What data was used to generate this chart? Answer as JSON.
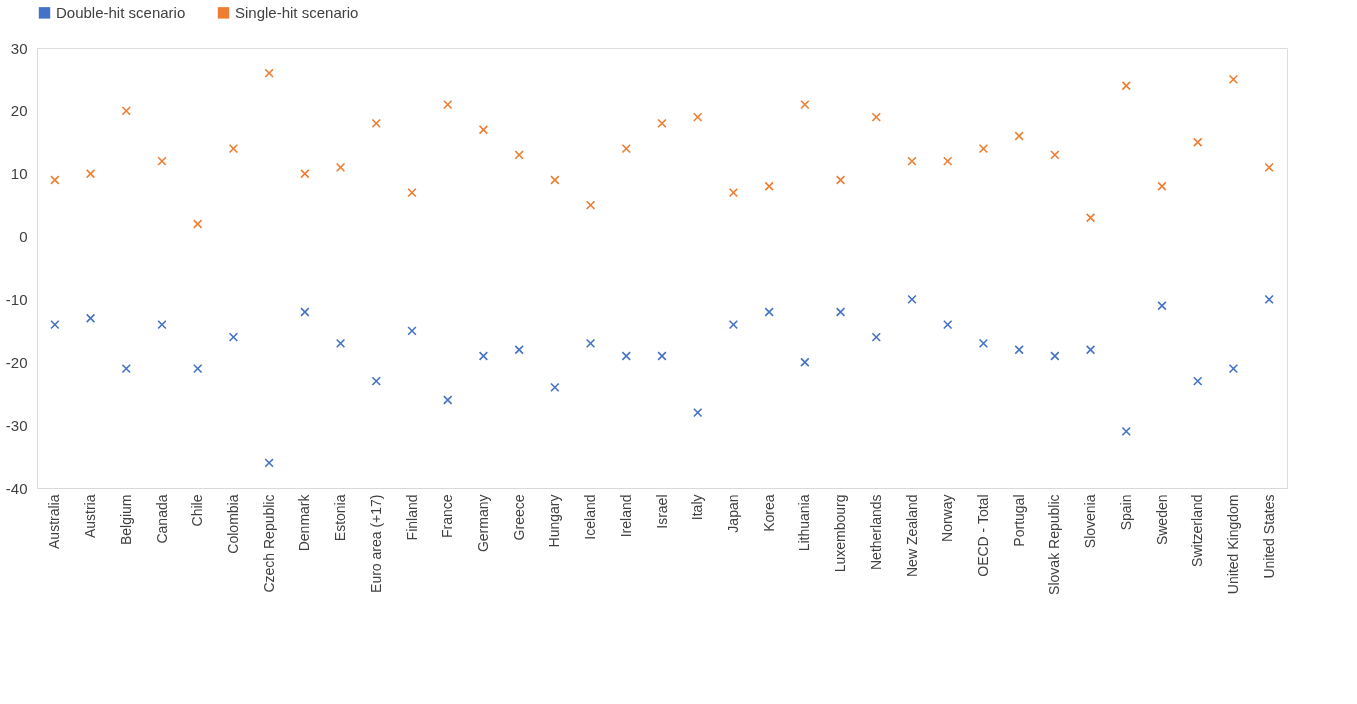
{
  "chart_data": {
    "type": "scatter",
    "categories": [
      "Australia",
      "Austria",
      "Belgium",
      "Canada",
      "Chile",
      "Colombia",
      "Czech Republic",
      "Denmark",
      "Estonia",
      "Euro area (+17)",
      "Finland",
      "France",
      "Germany",
      "Greece",
      "Hungary",
      "Iceland",
      "Ireland",
      "Israel",
      "Italy",
      "Japan",
      "Korea",
      "Lithuania",
      "Luxembourg",
      "Netherlands",
      "New Zealand",
      "Norway",
      "OECD - Total",
      "Portugal",
      "Slovak Republic",
      "Slovenia",
      "Spain",
      "Sweden",
      "Switzerland",
      "United Kingdom",
      "United States"
    ],
    "series": [
      {
        "name": "Double-hit scenario",
        "color": "#4472c4",
        "values": [
          -14,
          -13,
          -21,
          -14,
          -21,
          -16,
          -36,
          -12,
          -17,
          -23,
          -15,
          -26,
          -19,
          -18,
          -24,
          -17,
          -19,
          -19,
          -28,
          -14,
          -12,
          -20,
          -12,
          -16,
          -10,
          -14,
          -17,
          -18,
          -19,
          -18,
          -31,
          -11,
          -23,
          -21,
          -10
        ]
      },
      {
        "name": "Single-hit scenario",
        "color": "#ed7d31",
        "values": [
          9,
          10,
          20,
          12,
          2,
          14,
          26,
          10,
          11,
          18,
          7,
          21,
          17,
          13,
          9,
          5,
          14,
          18,
          19,
          7,
          8,
          21,
          9,
          19,
          12,
          12,
          14,
          16,
          13,
          3,
          24,
          8,
          15,
          25,
          11
        ]
      }
    ],
    "ylim": [
      -40,
      30
    ],
    "yticks": [
      -40,
      -30,
      -20,
      -10,
      0,
      10,
      20,
      30
    ],
    "grid": false,
    "legend": "top",
    "marker": "cross"
  }
}
